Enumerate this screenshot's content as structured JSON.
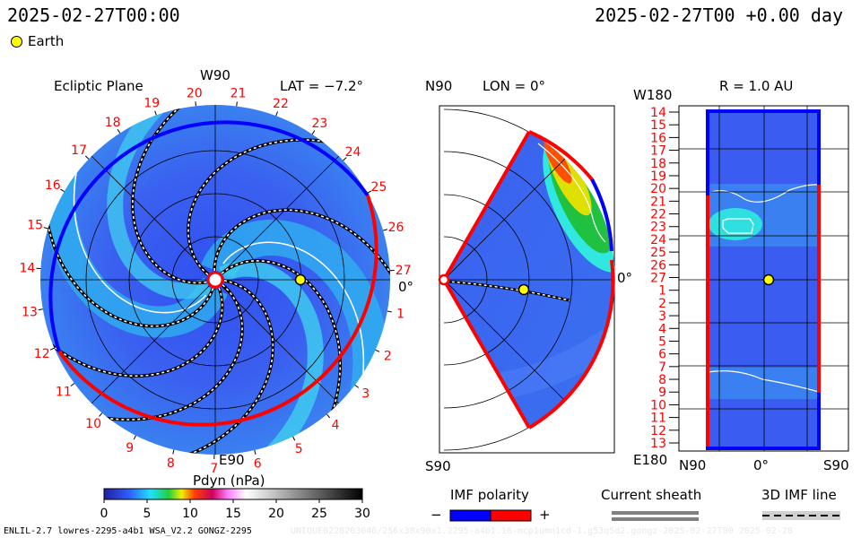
{
  "header": {
    "time_left": "2025-02-27T00:00",
    "time_right": "2025-02-27T00 +0.00 day",
    "earth_label": "Earth"
  },
  "ecliptic": {
    "title": "Ecliptic Plane",
    "top_label": "W90",
    "bottom_label": "E90",
    "right_label": "0°",
    "lat": "LAT = −7.2°",
    "days": [
      "1",
      "2",
      "3",
      "4",
      "5",
      "6",
      "7",
      "8",
      "9",
      "10",
      "11",
      "12",
      "13",
      "14",
      "15",
      "16",
      "17",
      "18",
      "19",
      "20",
      "21",
      "22",
      "23",
      "24",
      "25",
      "26",
      "27"
    ]
  },
  "meridional": {
    "top_label": "N90",
    "bottom_label": "S90",
    "lon": "LON = 0°",
    "right_label": "0°"
  },
  "radial": {
    "title": "R = 1.0 AU",
    "top_label": "W180",
    "bottom_label": "E180",
    "x_left": "N90",
    "x_mid": "0°",
    "x_right": "S90",
    "days": [
      "14",
      "15",
      "16",
      "17",
      "18",
      "19",
      "20",
      "21",
      "22",
      "23",
      "24",
      "25",
      "26",
      "27",
      "1",
      "2",
      "3",
      "4",
      "5",
      "6",
      "7",
      "8",
      "9",
      "10",
      "11",
      "12",
      "13"
    ]
  },
  "chart_data": {
    "type": "heatmap",
    "title": "Pdyn (nPa)",
    "colorbar": {
      "label": "Pdyn (nPa)",
      "range": [
        0,
        30
      ],
      "ticks": [
        "0",
        "5",
        "10",
        "15",
        "20",
        "25",
        "30"
      ]
    }
  },
  "legend": {
    "imf_title": "IMF polarity",
    "minus": "−",
    "plus": "+",
    "sheath_title": "Current sheath",
    "imf_line_title": "3D IMF line",
    "colors": {
      "negative": "#0000ff",
      "positive": "#ff0000"
    }
  },
  "footer": {
    "left": "ENLIL-2.7 lowres-2295-a4b1 WSA_V2.2 GONGZ-2295",
    "right": "UNIQUE0228203046/256x30x90x1.2295-a4b1.16-mcp1umn1cd-1.g53q5d2.gongz-2025-02-27T00   2025-02-28"
  }
}
